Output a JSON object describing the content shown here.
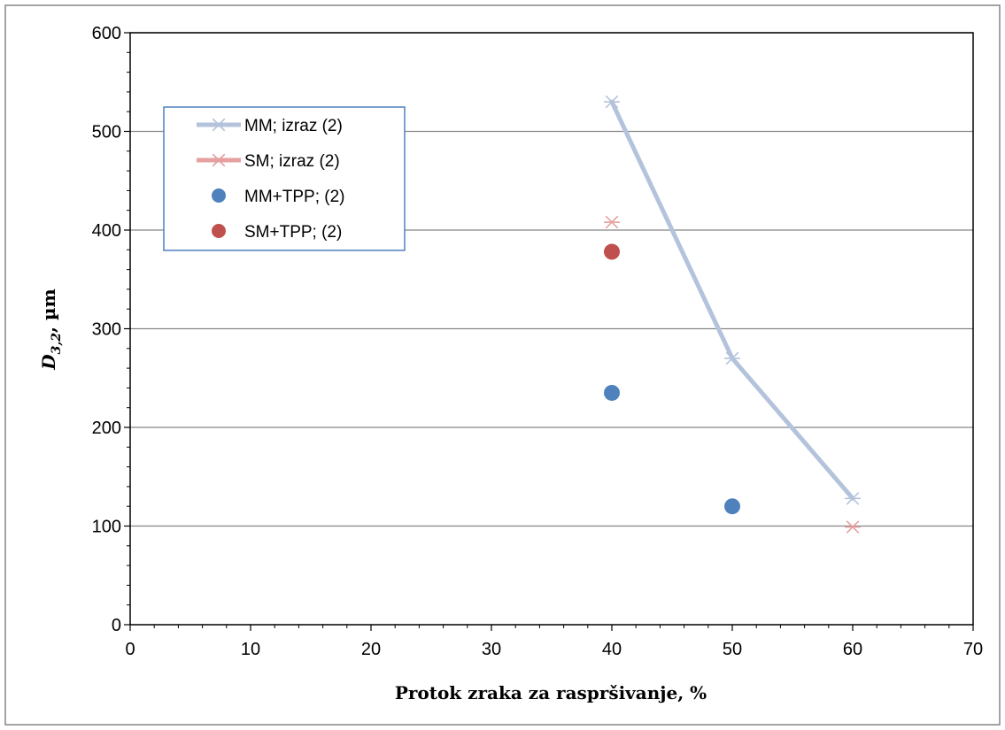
{
  "chart_data": {
    "type": "scatter",
    "xlabel": "Protok zraka za raspršivanje, %",
    "ylabel": {
      "main": "D",
      "sub": "3,2",
      "rest": ", µm"
    },
    "xlim": [
      0,
      70
    ],
    "ylim": [
      0,
      600
    ],
    "x_ticks": [
      "0",
      "10",
      "20",
      "30",
      "40",
      "50",
      "60",
      "70"
    ],
    "y_ticks": [
      "0",
      "100",
      "200",
      "300",
      "400",
      "500",
      "600"
    ],
    "grid": "horizontal",
    "legend_position": "top-left",
    "series": [
      {
        "name": "MM; izraz (2)",
        "kind": "line-star",
        "color": "#b4c3dc",
        "points": [
          [
            40,
            530
          ],
          [
            50,
            270
          ],
          [
            60,
            128
          ]
        ]
      },
      {
        "name": "SM; izraz (2)",
        "kind": "line-star",
        "color": "#e6a0a0",
        "points": [
          [
            40,
            408
          ],
          [
            60,
            99
          ]
        ]
      },
      {
        "name": "MM+TPP; (2)",
        "kind": "dot",
        "color": "#4f81bd",
        "points": [
          [
            40,
            235
          ],
          [
            50,
            120
          ]
        ]
      },
      {
        "name": "SM+TPP; (2)",
        "kind": "dot",
        "color": "#c0504d",
        "points": [
          [
            40,
            378
          ]
        ]
      }
    ],
    "colors": {
      "frame": "#000000",
      "grid": "#868686",
      "legend_border": "#4f81bd",
      "outer_border": "#868686"
    }
  }
}
